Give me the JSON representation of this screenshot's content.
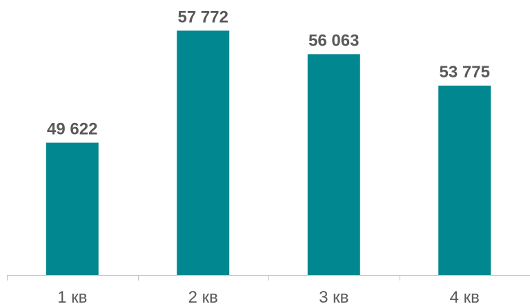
{
  "chart_data": {
    "type": "bar",
    "categories": [
      "1 кв",
      "2 кв",
      "3 кв",
      "4 кв"
    ],
    "values": [
      49622,
      57772,
      56063,
      53775
    ],
    "value_labels": [
      "49 622",
      "57 772",
      "56 063",
      "53 775"
    ],
    "title": "",
    "xlabel": "",
    "ylabel": "",
    "ylim": [
      40000,
      59500
    ],
    "grid": false,
    "legend": "none",
    "colors": {
      "bar": "#00878F",
      "axis": "#BFBFBF",
      "text": "#595959"
    }
  }
}
